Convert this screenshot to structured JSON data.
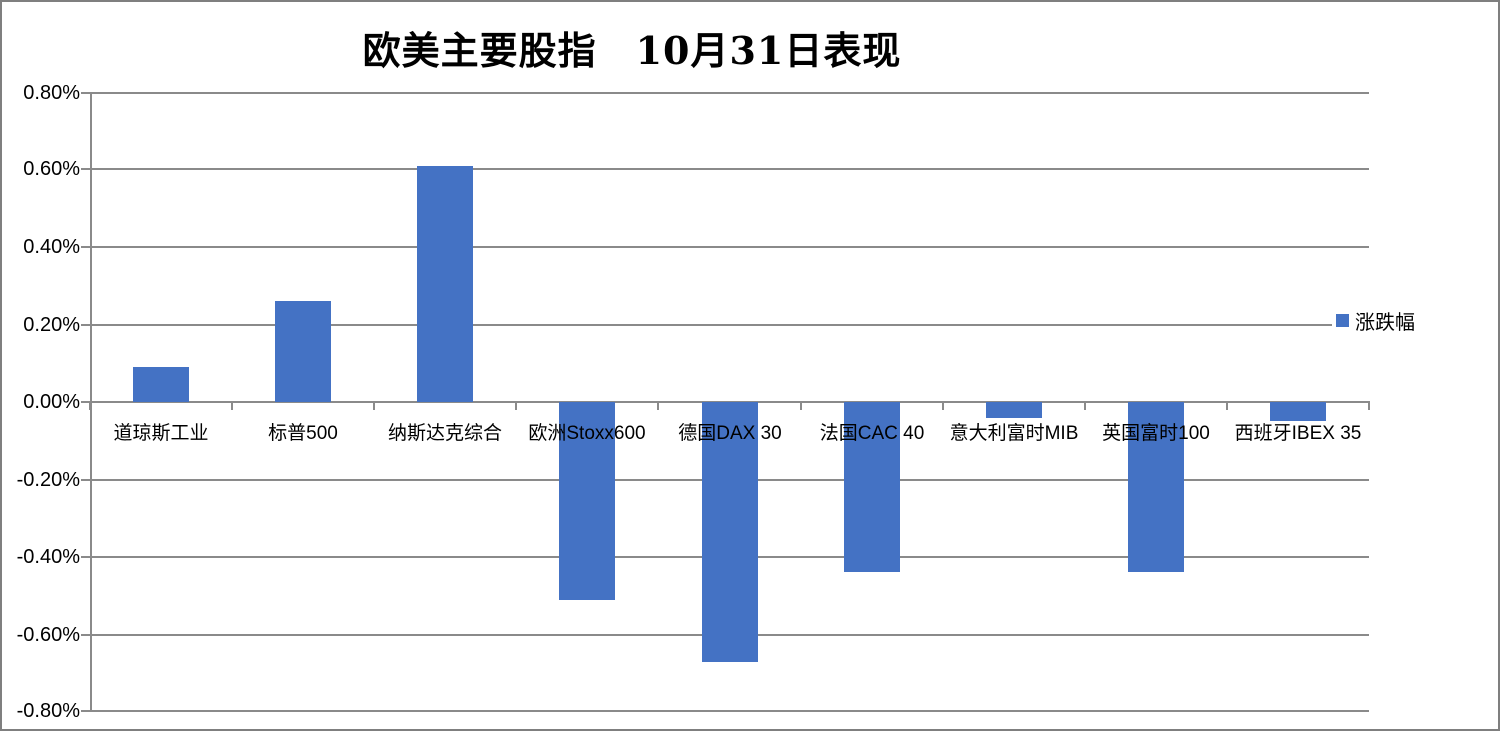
{
  "frame": {
    "background_color": "#ffffff",
    "border_color": "#7f7f7f"
  },
  "chart_data": {
    "type": "bar",
    "title": "欧美主要股指　10月31日表现",
    "categories": [
      "道琼斯工业",
      "标普500",
      "纳斯达克综合",
      "欧洲Stoxx600",
      "德国DAX 30",
      "法国CAC 40",
      "意大利富时MIB",
      "英国富时100",
      "西班牙IBEX 35"
    ],
    "series": [
      {
        "name": "涨跌幅",
        "color": "#4472C4",
        "values": [
          0.09,
          0.26,
          0.61,
          -0.51,
          -0.67,
          -0.44,
          -0.04,
          -0.44,
          -0.05
        ]
      }
    ],
    "value_unit": "%",
    "xlabel": "",
    "ylabel": "",
    "ylim": [
      -0.8,
      0.8
    ],
    "ytick_step": 0.2,
    "ytick_labels": [
      "0.80%",
      "0.60%",
      "0.40%",
      "0.20%",
      "0.00%",
      "-0.20%",
      "-0.40%",
      "-0.60%",
      "-0.80%"
    ],
    "grid": true,
    "gridline_color": "#8a8a8a",
    "axis_color": "#8a8a8a",
    "legend_position": "right-overlay",
    "legend_entries": [
      "涨跌幅"
    ]
  }
}
